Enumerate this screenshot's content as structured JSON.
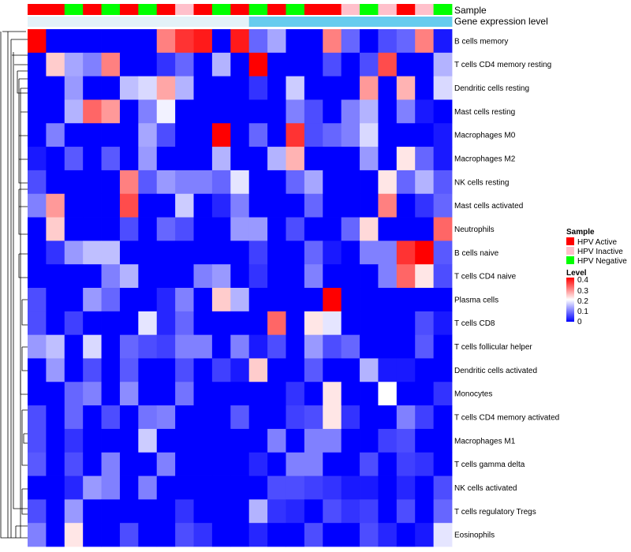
{
  "chart_data": {
    "type": "heatmap",
    "title": "",
    "row_labels": [
      "B cells memory",
      "T cells CD4 memory resting",
      "Dendritic cells resting",
      "Mast cells resting",
      "Macrophages M0",
      "Macrophages M2",
      "NK cells resting",
      "Mast cells activated",
      "Neutrophils",
      "B cells naive",
      "T cells CD4 naive",
      "Plasma cells",
      "T cells CD8",
      "T cells follicular helper",
      "Dendritic cells activated",
      "Monocytes",
      "T cells CD4 memory activated",
      "Macrophages M1",
      "T cells gamma delta",
      "NK cells activated",
      "T cells regulatory  Tregs",
      "Eosinophils"
    ],
    "annotation_tracks": [
      {
        "name": "Sample",
        "values": [
          "HPV Active",
          "HPV Active",
          "HPV Negative",
          "HPV Active",
          "HPV Negative",
          "HPV Active",
          "HPV Negative",
          "HPV Active",
          "HPV Inactive",
          "HPV Active",
          "HPV Negative",
          "HPV Active",
          "HPV Negative",
          "HPV Active",
          "HPV Negative",
          "HPV Active",
          "HPV Active",
          "HPV Inactive",
          "HPV Negative",
          "HPV Inactive",
          "HPV Active",
          "HPV Inactive",
          "HPV Negative"
        ]
      },
      {
        "name": "Gene expression level",
        "values": [
          "low",
          "low",
          "low",
          "low",
          "low",
          "low",
          "low",
          "low",
          "low",
          "low",
          "low",
          "low",
          "high",
          "high",
          "high",
          "high",
          "high",
          "high",
          "high",
          "high",
          "high",
          "high",
          "high"
        ]
      }
    ],
    "sample_legend": {
      "title": "Sample",
      "entries": [
        {
          "label": "HPV Active",
          "color": "#ff0000"
        },
        {
          "label": "HPV Inactive",
          "color": "#ffc0cb"
        },
        {
          "label": "HPV Negative",
          "color": "#00ff00"
        }
      ]
    },
    "gene_expression_colors": {
      "low": "#e4f2f8",
      "high": "#66ccee"
    },
    "color_scale": {
      "title": "Level",
      "min": 0,
      "max": 0.4,
      "ticks": [
        "0.4",
        "0.3",
        "0.2",
        "0.1",
        "0"
      ],
      "stops": [
        {
          "value": 0,
          "color": "#0000ff"
        },
        {
          "value": 0.2,
          "color": "#ffffff"
        },
        {
          "value": 0.4,
          "color": "#ff0000"
        }
      ]
    },
    "values": [
      [
        0.4,
        0,
        0,
        0,
        0,
        0,
        0,
        0.3,
        0.36,
        0.38,
        0,
        0.38,
        0.08,
        0.13,
        0,
        0,
        0.3,
        0.08,
        0,
        0.06,
        0.08,
        0.3,
        0.02
      ],
      [
        0,
        0.24,
        0.13,
        0.1,
        0.3,
        0,
        0,
        0.04,
        0.08,
        0,
        0.14,
        0,
        0.4,
        0,
        0,
        0,
        0.06,
        0,
        0.06,
        0.34,
        0,
        0,
        0.14
      ],
      [
        0,
        0,
        0.12,
        0,
        0,
        0.15,
        0.17,
        0.27,
        0.14,
        0,
        0,
        0,
        0.04,
        0,
        0.16,
        0,
        0,
        0,
        0.28,
        0,
        0.26,
        0,
        0.17
      ],
      [
        0,
        0,
        0.14,
        0.32,
        0.28,
        0,
        0.1,
        0.19,
        0,
        0,
        0,
        0,
        0,
        0,
        0.1,
        0.06,
        0,
        0.1,
        0.14,
        0,
        0.1,
        0.02,
        0
      ],
      [
        0,
        0.1,
        0,
        0,
        0,
        0,
        0.13,
        0.06,
        0,
        0,
        0.4,
        0,
        0.08,
        0,
        0.36,
        0.06,
        0.08,
        0.1,
        0.17,
        0,
        0,
        0,
        0.02
      ],
      [
        0.02,
        0,
        0.07,
        0,
        0.07,
        0,
        0.12,
        0,
        0,
        0,
        0.14,
        0,
        0,
        0.14,
        0.26,
        0,
        0,
        0,
        0.12,
        0,
        0.22,
        0.08,
        0.02
      ],
      [
        0.06,
        0,
        0,
        0,
        0,
        0.3,
        0.07,
        0.12,
        0.1,
        0.1,
        0.08,
        0.18,
        0,
        0,
        0.08,
        0.13,
        0,
        0,
        0,
        0.22,
        0.08,
        0.14,
        0.07
      ],
      [
        0.1,
        0.28,
        0,
        0,
        0,
        0.34,
        0,
        0,
        0.16,
        0,
        0.03,
        0.1,
        0,
        0,
        0,
        0.08,
        0,
        0,
        0,
        0.3,
        0,
        0.04,
        0.08
      ],
      [
        0,
        0.24,
        0,
        0,
        0,
        0.06,
        0,
        0.08,
        0.06,
        0,
        0,
        0.12,
        0.12,
        0,
        0.06,
        0,
        0,
        0.08,
        0.23,
        0,
        0,
        0,
        0.32
      ],
      [
        0,
        0.04,
        0.12,
        0.15,
        0.15,
        0,
        0,
        0,
        0,
        0,
        0,
        0,
        0.05,
        0,
        0,
        0.08,
        0.02,
        0,
        0.1,
        0.1,
        0.36,
        0.4,
        0.07
      ],
      [
        0,
        0,
        0,
        0,
        0.1,
        0.14,
        0,
        0,
        0,
        0.1,
        0.12,
        0,
        0.04,
        0,
        0,
        0.1,
        0,
        0,
        0,
        0.1,
        0.32,
        0.22,
        0.06
      ],
      [
        0.06,
        0,
        0,
        0.12,
        0.08,
        0,
        0,
        0.03,
        0.1,
        0,
        0.24,
        0.14,
        0,
        0,
        0,
        0,
        0.4,
        0,
        0,
        0,
        0,
        0,
        0
      ],
      [
        0.06,
        0,
        0.05,
        0,
        0,
        0,
        0.18,
        0.03,
        0.08,
        0,
        0,
        0,
        0,
        0.32,
        0,
        0.22,
        0.18,
        0,
        0,
        0,
        0,
        0.06,
        0.02
      ],
      [
        0.12,
        0.15,
        0,
        0.17,
        0,
        0.08,
        0.06,
        0.05,
        0.1,
        0.1,
        0,
        0.1,
        0.02,
        0.06,
        0,
        0.12,
        0.06,
        0.08,
        0,
        0,
        0,
        0.07,
        0
      ],
      [
        0,
        0.12,
        0,
        0.06,
        0,
        0.07,
        0,
        0,
        0.06,
        0,
        0.05,
        0.02,
        0.24,
        0,
        0,
        0.07,
        0,
        0,
        0.14,
        0.02,
        0.02,
        0,
        0
      ],
      [
        0,
        0,
        0.08,
        0.1,
        0,
        0.11,
        0,
        0,
        0.09,
        0,
        0,
        0,
        0,
        0,
        0.04,
        0,
        0.22,
        0,
        0,
        0.2,
        0,
        0,
        0.04
      ],
      [
        0.06,
        0,
        0.08,
        0,
        0.06,
        0,
        0.09,
        0.1,
        0,
        0,
        0,
        0.07,
        0,
        0,
        0.05,
        0.06,
        0.22,
        0.04,
        0,
        0,
        0.1,
        0.05,
        0
      ],
      [
        0.06,
        0,
        0.04,
        0,
        0,
        0,
        0.16,
        0,
        0,
        0,
        0,
        0,
        0,
        0.1,
        0,
        0.1,
        0.1,
        0,
        0,
        0.05,
        0.06,
        0,
        0
      ],
      [
        0.07,
        0,
        0.06,
        0,
        0.1,
        0,
        0,
        0.1,
        0,
        0,
        0,
        0,
        0.03,
        0,
        0.1,
        0.1,
        0,
        0,
        0.06,
        0,
        0.05,
        0.04,
        0
      ],
      [
        0,
        0,
        0.03,
        0.12,
        0.1,
        0,
        0.1,
        0,
        0,
        0,
        0,
        0,
        0,
        0.06,
        0.06,
        0.05,
        0.04,
        0.02,
        0.02,
        0,
        0.03,
        0,
        0.06
      ],
      [
        0.06,
        0,
        0.12,
        0,
        0,
        0,
        0,
        0,
        0.04,
        0,
        0,
        0,
        0.14,
        0.04,
        0.03,
        0,
        0.06,
        0.04,
        0.05,
        0,
        0.06,
        0,
        0.08
      ],
      [
        0.1,
        0,
        0.22,
        0,
        0,
        0.06,
        0,
        0,
        0.06,
        0.04,
        0,
        0,
        0.03,
        0,
        0,
        0.06,
        0,
        0,
        0.06,
        0.03,
        0,
        0.02,
        0.18
      ]
    ]
  }
}
